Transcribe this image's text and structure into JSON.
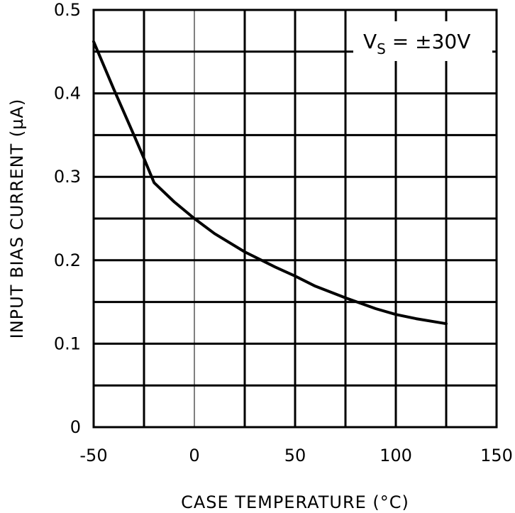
{
  "chart_data": {
    "type": "line",
    "xlabel": "CASE TEMPERATURE (°C)",
    "ylabel": "INPUT BIAS CURRENT (µA)",
    "xlim": [
      -50,
      150
    ],
    "ylim": [
      0,
      0.5
    ],
    "x_ticks": [
      -50,
      0,
      50,
      100,
      150
    ],
    "x_tick_labels": [
      "-50",
      "0",
      "50",
      "100",
      "150"
    ],
    "y_ticks": [
      0,
      0.1,
      0.2,
      0.3,
      0.4,
      0.5
    ],
    "y_tick_labels": [
      "0",
      "0.1",
      "0.2",
      "0.3",
      "0.4",
      "0.5"
    ],
    "x_gridlines": [
      -50,
      -25,
      0,
      25,
      50,
      75,
      100,
      125,
      150
    ],
    "y_gridlines": [
      0,
      0.05,
      0.1,
      0.15,
      0.2,
      0.25,
      0.3,
      0.35,
      0.4,
      0.45,
      0.5
    ],
    "grid": true,
    "annotation": {
      "symbol": "V",
      "subscript": "S",
      "rest": " = ±30V"
    },
    "series": [
      {
        "x": [
          -50,
          -40,
          -30,
          -25,
          -20,
          -10,
          0,
          10,
          25,
          40,
          50,
          60,
          75,
          90,
          100,
          110,
          125
        ],
        "y": [
          0.462,
          0.405,
          0.35,
          0.322,
          0.293,
          0.27,
          0.25,
          0.232,
          0.21,
          0.192,
          0.181,
          0.169,
          0.155,
          0.142,
          0.135,
          0.13,
          0.124
        ]
      }
    ]
  }
}
